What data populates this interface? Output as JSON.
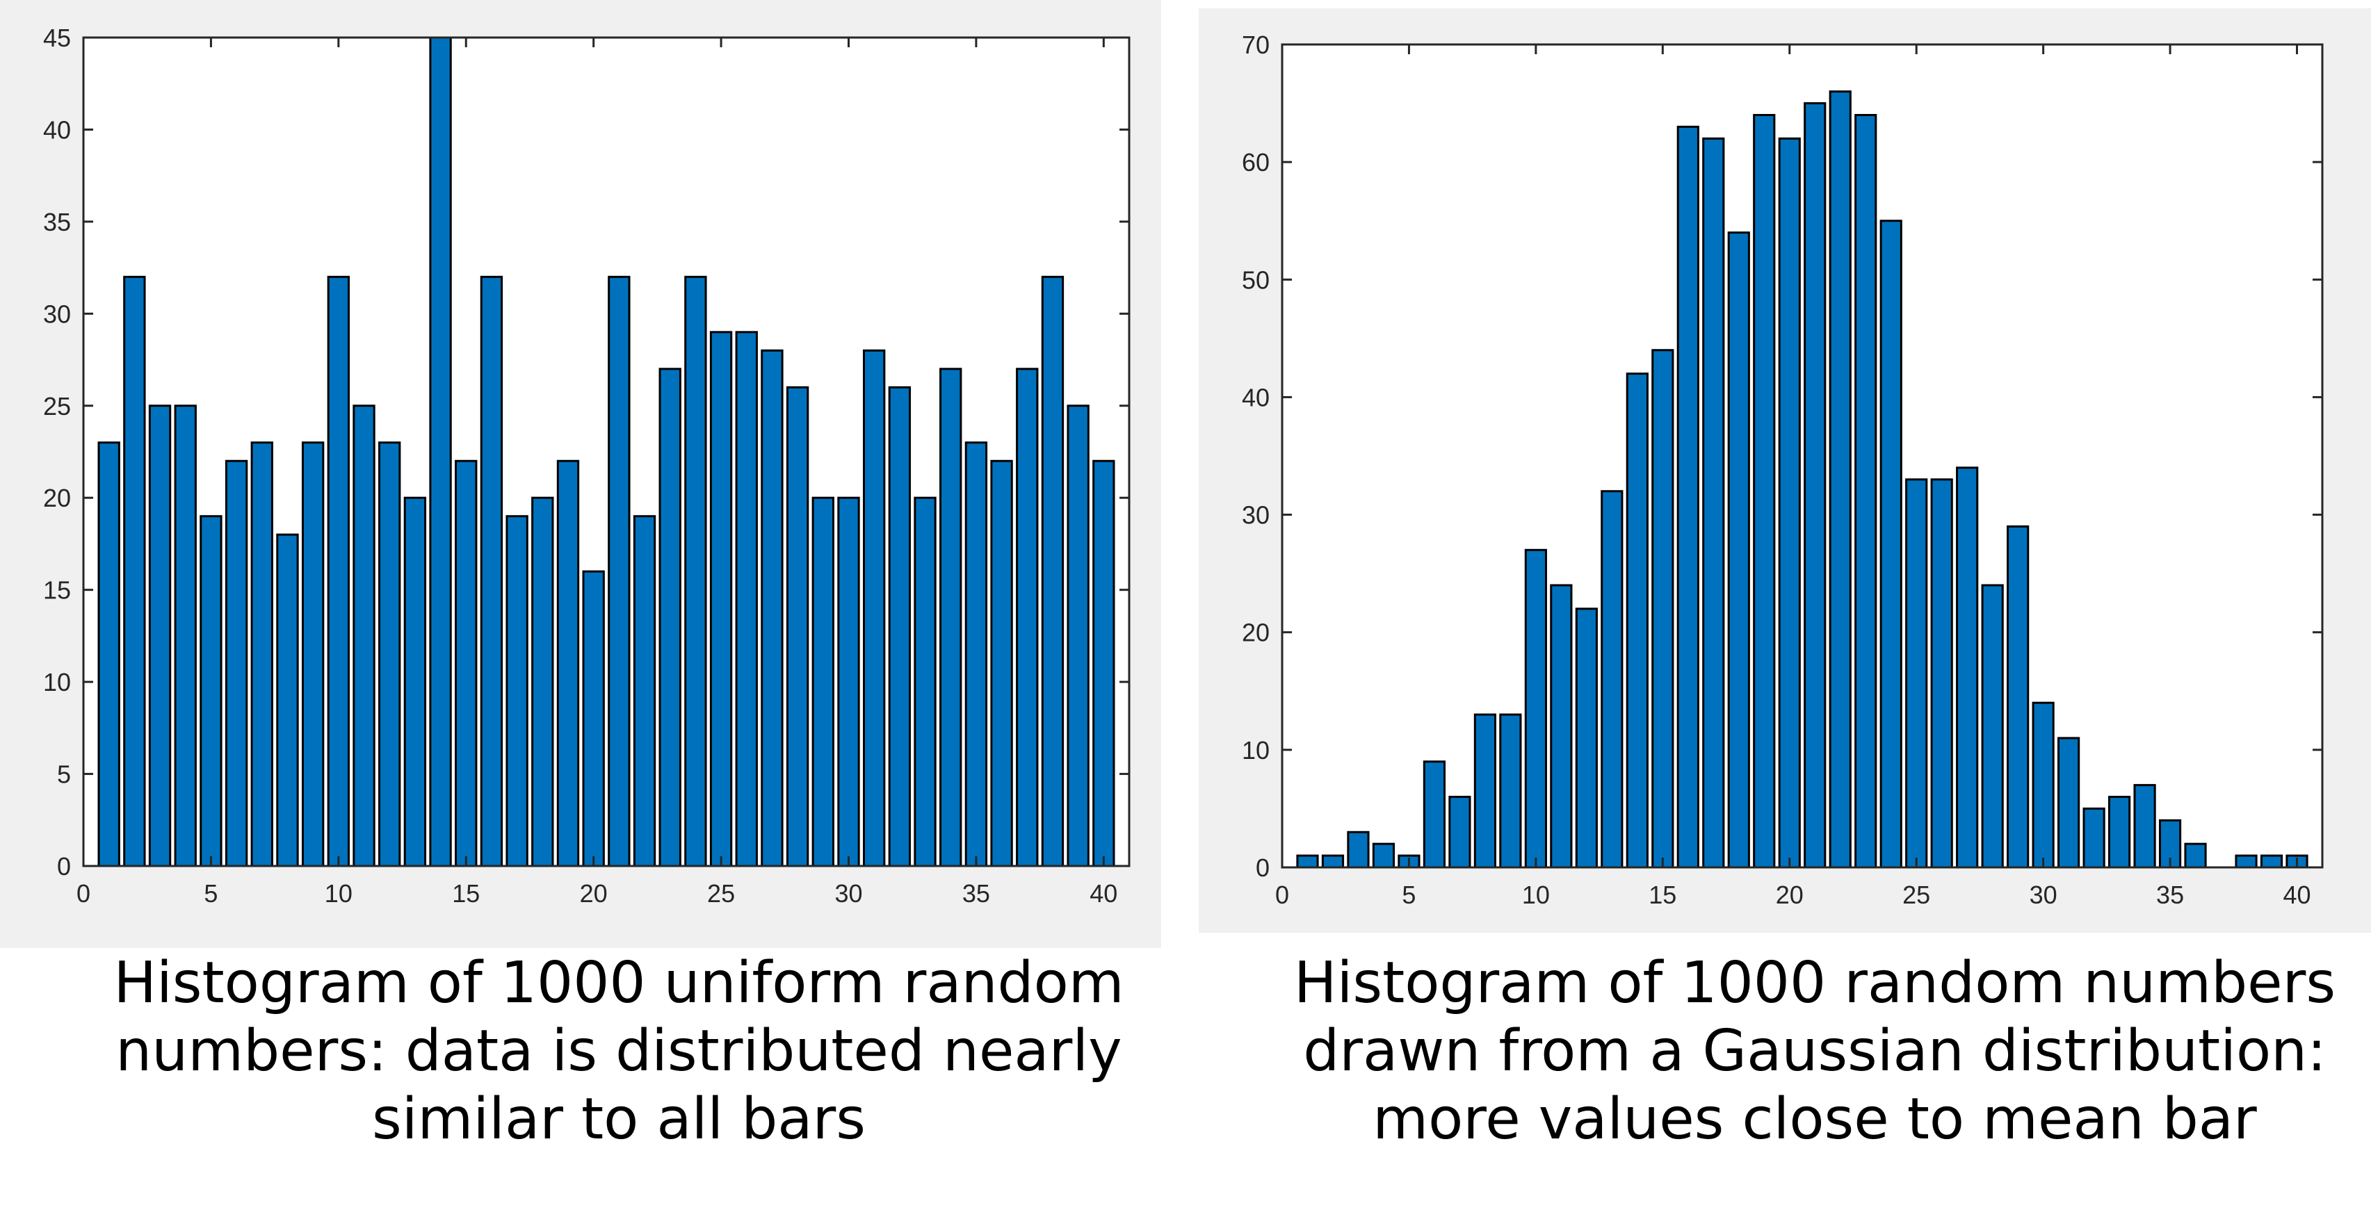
{
  "colors": {
    "panel_background": "#f0f0f0",
    "plot_background": "#ffffff",
    "bar_fill": "#0072bd",
    "bar_edge": "#000000",
    "axis": "#262626"
  },
  "captions": {
    "left": "Histogram of 1000 uniform random\nnumbers: data is distributed nearly\nsimilar to all bars",
    "right": "Histogram of 1000 random numbers\ndrawn from a Gaussian distribution:\nmore values close to mean bar"
  },
  "chart_data": [
    {
      "type": "bar",
      "title": "",
      "xlabel": "",
      "ylabel": "",
      "xlim": [
        0,
        41
      ],
      "ylim": [
        0,
        45
      ],
      "xticks": [
        0,
        5,
        10,
        15,
        20,
        25,
        30,
        35,
        40
      ],
      "yticks": [
        0,
        5,
        10,
        15,
        20,
        25,
        30,
        35,
        40,
        45
      ],
      "grid": false,
      "legend": "none",
      "categories": [
        1,
        2,
        3,
        4,
        5,
        6,
        7,
        8,
        9,
        10,
        11,
        12,
        13,
        14,
        15,
        16,
        17,
        18,
        19,
        20,
        21,
        22,
        23,
        24,
        25,
        26,
        27,
        28,
        29,
        30,
        31,
        32,
        33,
        34,
        35,
        36,
        37,
        38,
        39,
        40
      ],
      "values": [
        23,
        32,
        25,
        25,
        19,
        22,
        23,
        18,
        23,
        32,
        25,
        23,
        20,
        45,
        22,
        32,
        19,
        20,
        22,
        16,
        32,
        19,
        27,
        32,
        29,
        29,
        28,
        26,
        20,
        20,
        28,
        26,
        20,
        27,
        23,
        22,
        27,
        32,
        25,
        22
      ]
    },
    {
      "type": "bar",
      "title": "",
      "xlabel": "",
      "ylabel": "",
      "xlim": [
        0,
        41
      ],
      "ylim": [
        0,
        70
      ],
      "xticks": [
        0,
        5,
        10,
        15,
        20,
        25,
        30,
        35,
        40
      ],
      "yticks": [
        0,
        10,
        20,
        30,
        40,
        50,
        60,
        70
      ],
      "grid": false,
      "legend": "none",
      "categories": [
        1,
        2,
        3,
        4,
        5,
        6,
        7,
        8,
        9,
        10,
        11,
        12,
        13,
        14,
        15,
        16,
        17,
        18,
        19,
        20,
        21,
        22,
        23,
        24,
        25,
        26,
        27,
        28,
        29,
        30,
        31,
        32,
        33,
        34,
        35,
        36,
        37,
        38,
        39,
        40
      ],
      "values": [
        1,
        1,
        3,
        2,
        1,
        9,
        6,
        13,
        13,
        27,
        24,
        22,
        32,
        42,
        44,
        63,
        62,
        54,
        64,
        62,
        65,
        66,
        64,
        55,
        33,
        33,
        34,
        24,
        29,
        14,
        11,
        5,
        6,
        7,
        4,
        2,
        0,
        1,
        1,
        1
      ]
    }
  ]
}
